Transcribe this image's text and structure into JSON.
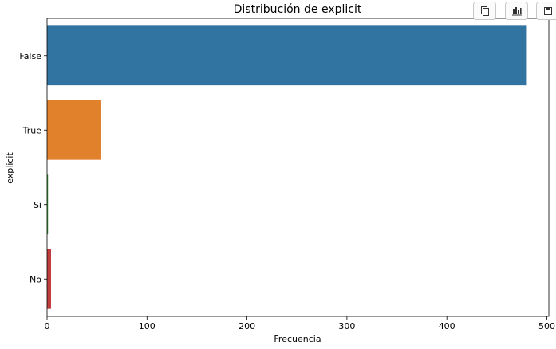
{
  "chart_data": {
    "type": "bar",
    "orientation": "horizontal",
    "title": "Distribución de explicit",
    "xlabel": "Frecuencia",
    "ylabel": "explicit",
    "categories": [
      "False",
      "True",
      "Si",
      "No"
    ],
    "values": [
      480,
      54,
      1,
      4
    ],
    "colors": [
      "#3274a1",
      "#e1812c",
      "#3a923a",
      "#c03d3e"
    ],
    "xlim": [
      0,
      502
    ],
    "xticks": [
      0,
      100,
      200,
      300,
      400,
      500
    ],
    "grid": false,
    "legend": "none"
  },
  "toolbar": {
    "icons": [
      "copy-icon",
      "chart-icon",
      "save-icon"
    ]
  }
}
